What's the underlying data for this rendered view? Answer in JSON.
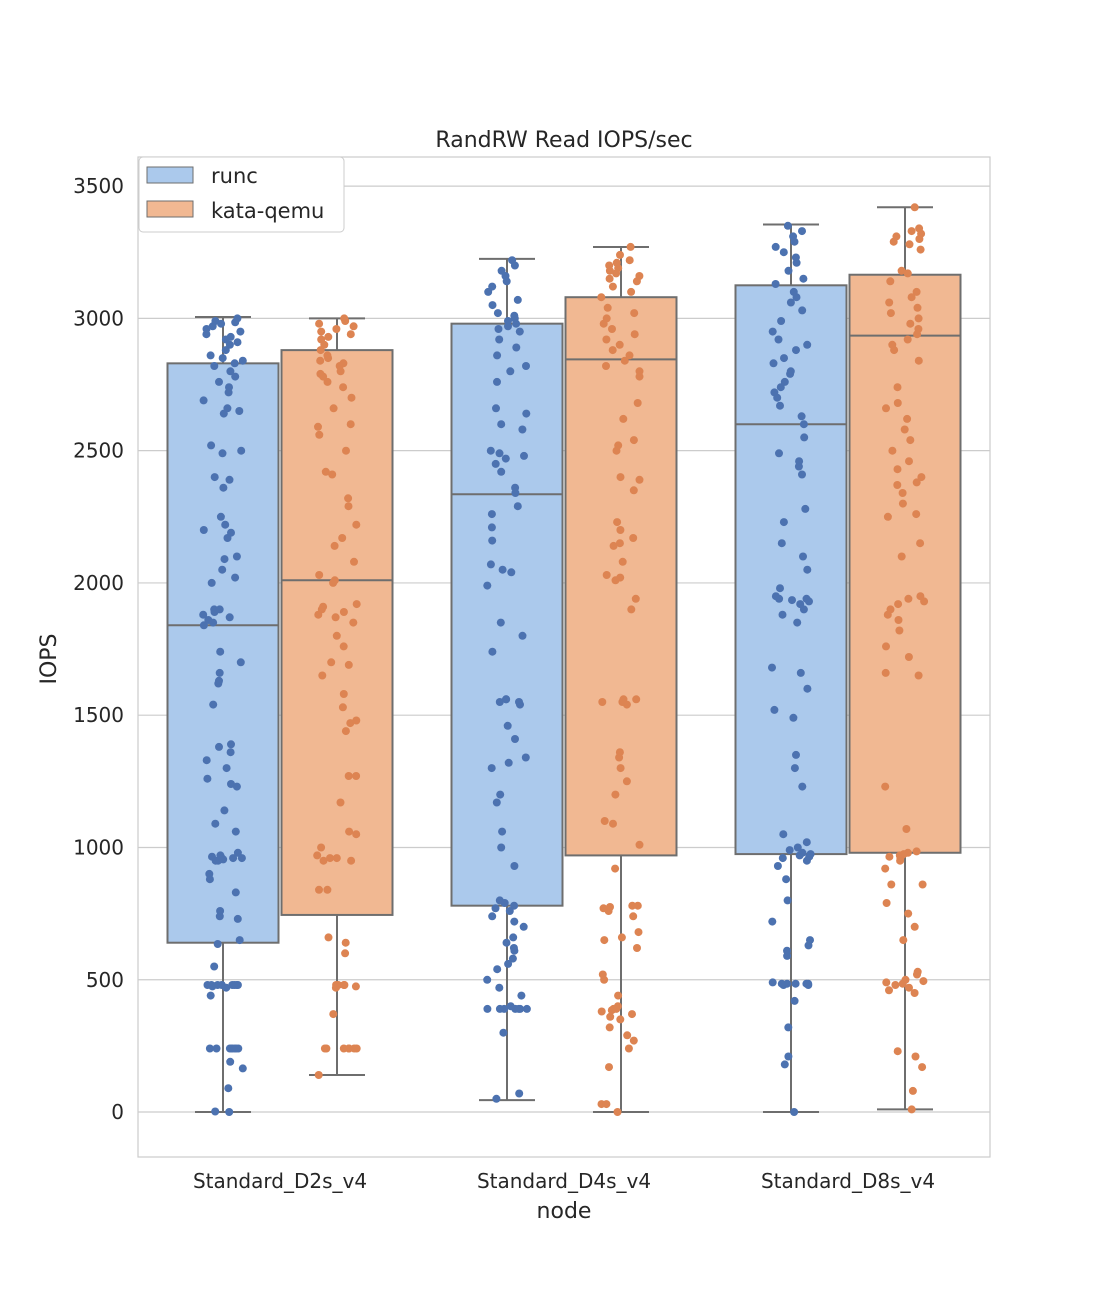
{
  "chart_data": {
    "type": "box",
    "title": "RandRW Read IOPS/sec",
    "xlabel": "node",
    "ylabel": "IOPS",
    "ylim": [
      -170,
      3610
    ],
    "yticks": [
      0,
      500,
      1000,
      1500,
      2000,
      2500,
      3000,
      3500
    ],
    "grid": true,
    "legend_position": "upper-left",
    "categories": [
      "Standard_D2s_v4",
      "Standard_D4s_v4",
      "Standard_D8s_v4"
    ],
    "series": [
      {
        "name": "runc",
        "box_color": "#abc9ec",
        "point_color": "#4c72b0",
        "boxes": [
          {
            "whisker_low": 0,
            "q1": 640,
            "median": 1840,
            "q3": 2830,
            "whisker_high": 3005
          },
          {
            "whisker_low": 45,
            "q1": 780,
            "median": 2335,
            "q3": 2980,
            "whisker_high": 3225
          },
          {
            "whisker_low": 0,
            "q1": 975,
            "median": 2600,
            "q3": 3125,
            "whisker_high": 3355
          }
        ]
      },
      {
        "name": "kata-qemu",
        "box_color": "#f1b892",
        "point_color": "#dd8452",
        "boxes": [
          {
            "whisker_low": 140,
            "q1": 745,
            "median": 2010,
            "q3": 2880,
            "whisker_high": 3000
          },
          {
            "whisker_low": 0,
            "q1": 970,
            "median": 2845,
            "q3": 3080,
            "whisker_high": 3270
          },
          {
            "whisker_low": 10,
            "q1": 980,
            "median": 2935,
            "q3": 3165,
            "whisker_high": 3420
          }
        ]
      }
    ],
    "points": {
      "runc": [
        [
          0,
          2,
          90,
          165,
          190,
          240,
          240,
          240,
          240,
          240,
          240,
          240,
          240,
          440,
          470,
          475,
          480,
          480,
          480,
          480,
          480,
          480,
          480,
          480,
          550,
          635,
          650,
          730,
          740,
          760,
          830,
          880,
          900,
          950,
          950,
          955,
          960,
          960,
          960,
          965,
          970,
          980,
          1060,
          1090,
          1140,
          1230,
          1240,
          1260,
          1300,
          1330,
          1360,
          1380,
          1390,
          1540,
          1620,
          1630,
          1660,
          1700,
          1740,
          1840,
          1850,
          1860,
          1870,
          1880,
          1890,
          1900,
          1900,
          2000,
          2020,
          2050,
          2090,
          2100,
          2170,
          2190,
          2200,
          2220,
          2250,
          2360,
          2390,
          2400,
          2490,
          2500,
          2520,
          2640,
          2650,
          2660,
          2690,
          2720,
          2740,
          2760,
          2780,
          2800,
          2820,
          2830,
          2840,
          2850,
          2860,
          2880,
          2900,
          2910,
          2920,
          2930,
          2940,
          2950,
          2960,
          2970,
          2980,
          2985,
          2990,
          3000
        ],
        [
          50,
          70,
          300,
          390,
          390,
          390,
          390,
          390,
          390,
          390,
          400,
          440,
          470,
          500,
          540,
          560,
          580,
          610,
          620,
          640,
          660,
          700,
          720,
          740,
          760,
          770,
          780,
          790,
          800,
          930,
          1000,
          1060,
          1170,
          1200,
          1300,
          1320,
          1340,
          1410,
          1460,
          1540,
          1550,
          1550,
          1560,
          1560,
          1740,
          1800,
          1850,
          1990,
          2040,
          2050,
          2070,
          2160,
          2210,
          2260,
          2290,
          2340,
          2360,
          2420,
          2450,
          2470,
          2480,
          2490,
          2500,
          2580,
          2600,
          2640,
          2660,
          2760,
          2800,
          2820,
          2860,
          2890,
          2920,
          2950,
          2960,
          2970,
          2980,
          2990,
          3000,
          3010,
          3020,
          3050,
          3070,
          3100,
          3120,
          3140,
          3160,
          3180,
          3200,
          3220
        ],
        [
          0,
          180,
          210,
          320,
          420,
          480,
          480,
          485,
          485,
          485,
          485,
          485,
          490,
          590,
          610,
          630,
          650,
          720,
          800,
          880,
          930,
          950,
          960,
          965,
          970,
          975,
          980,
          990,
          1000,
          1020,
          1050,
          1230,
          1300,
          1350,
          1490,
          1520,
          1600,
          1660,
          1680,
          1850,
          1880,
          1900,
          1920,
          1930,
          1935,
          1940,
          1940,
          1950,
          1980,
          2050,
          2100,
          2150,
          2230,
          2280,
          2410,
          2440,
          2460,
          2490,
          2550,
          2600,
          2630,
          2670,
          2700,
          2720,
          2740,
          2760,
          2790,
          2800,
          2830,
          2850,
          2880,
          2900,
          2920,
          2950,
          2990,
          3030,
          3060,
          3080,
          3100,
          3130,
          3150,
          3180,
          3210,
          3230,
          3250,
          3270,
          3290,
          3310,
          3330,
          3350
        ]
      ],
      "kata-qemu": [
        [
          140,
          240,
          240,
          240,
          240,
          240,
          240,
          240,
          370,
          470,
          475,
          480,
          480,
          480,
          480,
          480,
          600,
          640,
          660,
          840,
          840,
          950,
          950,
          960,
          960,
          970,
          1000,
          1050,
          1060,
          1170,
          1270,
          1270,
          1440,
          1470,
          1480,
          1530,
          1580,
          1650,
          1690,
          1700,
          1760,
          1800,
          1850,
          1870,
          1880,
          1890,
          1900,
          1910,
          1920,
          2000,
          2010,
          2030,
          2080,
          2140,
          2170,
          2220,
          2290,
          2320,
          2410,
          2420,
          2500,
          2560,
          2590,
          2600,
          2660,
          2700,
          2740,
          2760,
          2780,
          2790,
          2800,
          2820,
          2830,
          2840,
          2850,
          2860,
          2880,
          2900,
          2920,
          2930,
          2940,
          2950,
          2960,
          2970,
          2980,
          2990,
          3000
        ],
        [
          0,
          30,
          30,
          170,
          240,
          270,
          290,
          320,
          350,
          360,
          370,
          380,
          385,
          390,
          390,
          400,
          440,
          500,
          520,
          620,
          650,
          660,
          680,
          740,
          760,
          770,
          775,
          780,
          780,
          920,
          1010,
          1090,
          1100,
          1200,
          1250,
          1300,
          1340,
          1360,
          1540,
          1550,
          1550,
          1560,
          1560,
          1900,
          1940,
          2010,
          2020,
          2030,
          2080,
          2140,
          2150,
          2170,
          2200,
          2230,
          2350,
          2390,
          2400,
          2500,
          2520,
          2540,
          2620,
          2680,
          2780,
          2800,
          2820,
          2840,
          2860,
          2880,
          2900,
          2920,
          2940,
          2960,
          2980,
          3000,
          3020,
          3040,
          3080,
          3100,
          3120,
          3140,
          3150,
          3160,
          3170,
          3180,
          3190,
          3200,
          3210,
          3220,
          3240,
          3270
        ],
        [
          10,
          80,
          170,
          210,
          230,
          450,
          460,
          470,
          480,
          485,
          490,
          495,
          500,
          520,
          530,
          650,
          700,
          750,
          790,
          860,
          860,
          920,
          950,
          960,
          965,
          970,
          975,
          980,
          985,
          1070,
          1230,
          1650,
          1660,
          1720,
          1760,
          1820,
          1860,
          1880,
          1900,
          1920,
          1930,
          1940,
          1950,
          2100,
          2150,
          2250,
          2260,
          2300,
          2340,
          2370,
          2380,
          2400,
          2430,
          2460,
          2500,
          2540,
          2580,
          2620,
          2660,
          2680,
          2740,
          2840,
          2880,
          2900,
          2920,
          2940,
          2960,
          2980,
          3000,
          3020,
          3040,
          3060,
          3080,
          3100,
          3140,
          3170,
          3180,
          3260,
          3280,
          3290,
          3300,
          3310,
          3320,
          3330,
          3340,
          3420
        ]
      ]
    }
  }
}
